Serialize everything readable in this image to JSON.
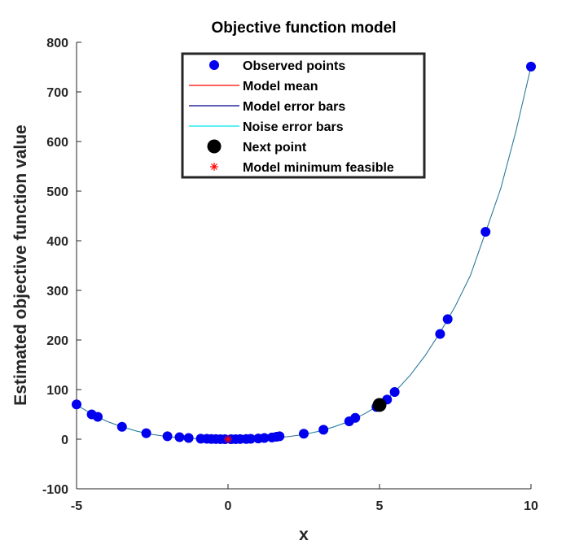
{
  "chart_data": {
    "type": "scatter",
    "title": "Objective function model",
    "xlabel": "x",
    "ylabel": "Estimated objective function value",
    "xlim": [
      -5,
      10
    ],
    "ylim": [
      -100,
      800
    ],
    "xticks": [
      -5,
      0,
      5,
      10
    ],
    "yticks": [
      -100,
      0,
      100,
      200,
      300,
      400,
      500,
      600,
      700,
      800
    ],
    "grid": false,
    "legend_position": "top-center",
    "legend": [
      "Observed points",
      "Model mean",
      "Model error bars",
      "Noise error bars",
      "Next point",
      "Model minimum feasible"
    ],
    "colors": {
      "observed": "#0000ee",
      "model_mean": "#ff0000",
      "model_error": "#00008b",
      "noise_error": "#00e5ee",
      "next_point": "#000000",
      "minimum": "#ff0000"
    },
    "observed_points": {
      "x": [
        -5,
        -4.5,
        -4.3,
        -3.5,
        -2.7,
        -2,
        -1.6,
        -1.3,
        -0.9,
        -0.7,
        -0.55,
        -0.4,
        -0.25,
        -0.1,
        0.1,
        0.25,
        0.4,
        0.6,
        0.75,
        1,
        1.2,
        1.45,
        1.6,
        1.7,
        2.5,
        3.15,
        4,
        4.2,
        4.9,
        5.0,
        5.25,
        5.5,
        7,
        7.25,
        8.5,
        10
      ],
      "y": [
        70,
        50,
        45,
        25,
        12,
        6,
        4,
        2.5,
        1,
        0.8,
        0.5,
        0.3,
        0.1,
        0,
        0,
        0.1,
        0.3,
        0.5,
        0.8,
        1.5,
        2.5,
        3.5,
        5,
        6,
        11,
        19,
        36,
        43,
        65,
        70,
        80,
        95,
        212,
        242,
        418,
        751
      ]
    },
    "model_curve": {
      "x": [
        -5,
        -4.5,
        -4,
        -3.5,
        -3,
        -2.5,
        -2,
        -1.5,
        -1,
        -0.5,
        0,
        0.5,
        1,
        1.5,
        2,
        2.5,
        3,
        3.5,
        4,
        4.5,
        5,
        5.5,
        6,
        6.5,
        7,
        7.5,
        8,
        8.5,
        9,
        9.5,
        10
      ],
      "y": [
        69,
        51,
        36,
        25,
        16,
        9.5,
        5.2,
        2.5,
        0.9,
        0.2,
        0,
        0.2,
        0.9,
        2.5,
        5.2,
        9.5,
        16,
        25,
        36,
        51,
        69,
        95,
        128,
        168,
        215,
        268,
        330,
        417,
        505,
        620,
        751
      ]
    },
    "next_point": {
      "x": 5,
      "y": 69
    },
    "model_minimum": {
      "x": 0,
      "y": 0
    }
  }
}
